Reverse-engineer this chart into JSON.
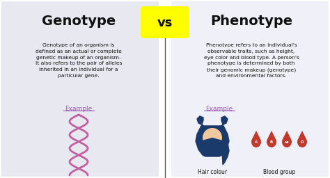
{
  "background_color": "#ffffff",
  "left_bg_color": "#e8e8f0",
  "right_bg_color": "#f0f0f8",
  "vs_bg_color": "#ffff00",
  "genotype_title": "Genotype",
  "phenotype_title": "Phenotype",
  "vs_text": "vs",
  "genotype_text": "Genotype of an organism is\ndefined as an actual or complete\ngenetic makeup of an organism.\nIt also refers to the pair of alleles\ninherited in an individual for a\nparticular gene.",
  "phenotype_text": "Phenotype refers to an individual's\nobservable traits, such as height,\neye color and blood type. A person's\nphenotype is determined by both\ntheir genomic makeup (genotype)\nand environmental factors.",
  "example_label": "Example",
  "example_color": "#9b59b6",
  "divider_color": "#555555",
  "title_color": "#111111",
  "body_color": "#111111",
  "hair_colour_label": "Hair colour",
  "blood_group_label": "Blood group",
  "blood_types": [
    "A",
    "B",
    "AB",
    "O"
  ],
  "blood_color": "#c0392b",
  "hair_color": "#1a3a6b",
  "dna_color": "#c060a0"
}
